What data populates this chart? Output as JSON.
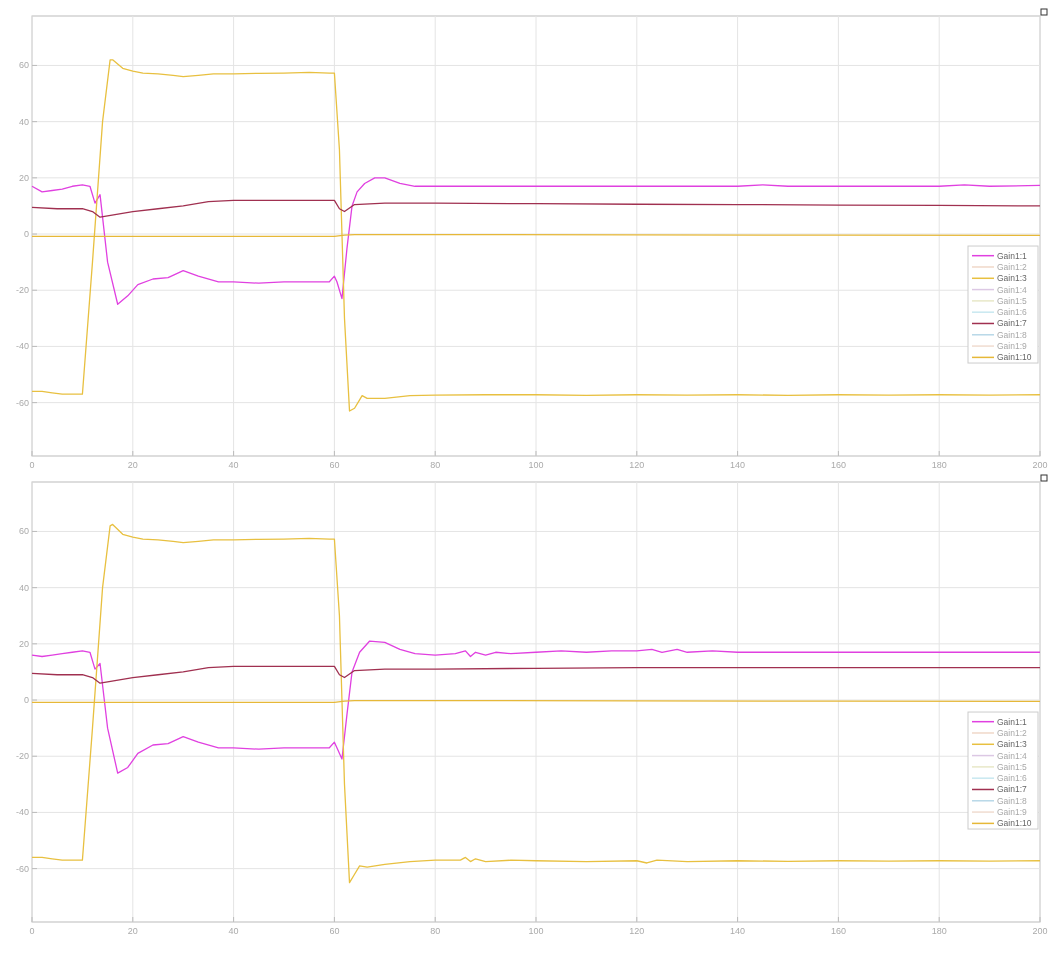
{
  "chart_data": [
    {
      "type": "line",
      "xlim": [
        0,
        200
      ],
      "ylim": [
        -79,
        77.6
      ],
      "xticks": [
        0,
        20,
        40,
        60,
        80,
        100,
        120,
        140,
        160,
        180,
        200
      ],
      "yticks": [
        -60,
        -40,
        -20,
        0,
        20,
        40,
        60
      ],
      "grid": true,
      "legend": "right",
      "series": [
        {
          "name": "Gain1:1",
          "color": "#e040e0",
          "x": [
            0,
            2,
            4,
            6,
            8,
            10,
            11.5,
            12.5,
            13.5,
            15,
            17,
            19,
            21,
            24,
            27,
            30,
            33,
            37,
            40,
            45,
            50,
            55,
            59,
            60,
            60.5,
            61.5,
            62.5,
            63.5,
            64.5,
            66,
            68,
            70,
            73,
            76,
            80,
            90,
            100,
            110,
            120,
            130,
            140,
            145,
            150,
            160,
            170,
            180,
            185,
            190,
            200
          ],
          "values": [
            17,
            15,
            15.5,
            16,
            17,
            17.5,
            17,
            11,
            14,
            -10,
            -25,
            -22,
            -18,
            -16,
            -15.5,
            -13,
            -15,
            -17,
            -17,
            -17.5,
            -17,
            -17,
            -17,
            -15,
            -17,
            -23,
            -5,
            10,
            15,
            18,
            20,
            20,
            18,
            17,
            17,
            17,
            17,
            17,
            17,
            17,
            17,
            17.5,
            17,
            17,
            17,
            17,
            17.5,
            17,
            17.3
          ]
        },
        {
          "name": "Gain1:2",
          "color": "#f0d8c8"
        },
        {
          "name": "Gain1:3",
          "color": "#e8c040",
          "x": [
            0,
            2,
            4,
            6,
            8,
            10,
            12,
            14,
            15.5,
            16,
            18,
            20,
            22,
            25,
            28,
            30,
            33,
            36,
            40,
            45,
            50,
            55,
            59,
            60,
            61,
            62,
            63,
            64,
            65,
            65.5,
            66.5,
            70,
            75,
            80,
            90,
            100,
            110,
            120,
            130,
            140,
            150,
            160,
            170,
            180,
            190,
            200
          ],
          "values": [
            -56,
            -56,
            -56.5,
            -57,
            -57,
            -57,
            -10,
            40,
            62,
            62,
            59,
            58,
            57.3,
            57,
            56.5,
            56,
            56.5,
            57,
            57,
            57.2,
            57.3,
            57.5,
            57.3,
            57.3,
            30,
            -30,
            -63,
            -62,
            -59,
            -57.5,
            -58.5,
            -58.5,
            -57.5,
            -57.3,
            -57.2,
            -57.2,
            -57.4,
            -57.2,
            -57.3,
            -57.2,
            -57.4,
            -57.2,
            -57.3,
            -57.2,
            -57.3,
            -57.2
          ]
        },
        {
          "name": "Gain1:4",
          "color": "#dcc8e4"
        },
        {
          "name": "Gain1:5",
          "color": "#e8e8c8"
        },
        {
          "name": "Gain1:6",
          "color": "#c8e8f0"
        },
        {
          "name": "Gain1:7",
          "color": "#a03050",
          "x": [
            0,
            5,
            10,
            12,
            13.5,
            15,
            20,
            25,
            30,
            35,
            40,
            50,
            60,
            61,
            62,
            64,
            70,
            80,
            100,
            120,
            140,
            160,
            180,
            200
          ],
          "values": [
            9.5,
            9,
            9,
            8,
            6,
            6.5,
            8,
            9,
            10,
            11.5,
            12,
            12,
            12,
            9,
            8,
            10.5,
            11,
            11,
            10.8,
            10.6,
            10.5,
            10.3,
            10.2,
            10
          ]
        },
        {
          "name": "Gain1:8",
          "color": "#b8d8e8"
        },
        {
          "name": "Gain1:9",
          "color": "#f0dcd0"
        },
        {
          "name": "Gain1:10",
          "color": "#e6b838",
          "x": [
            0,
            30,
            60,
            62,
            64,
            80,
            120,
            160,
            200
          ],
          "values": [
            -0.8,
            -0.8,
            -0.8,
            -0.4,
            -0.2,
            -0.2,
            -0.3,
            -0.4,
            -0.5
          ]
        }
      ]
    },
    {
      "type": "line",
      "xlim": [
        0,
        200
      ],
      "ylim": [
        -79,
        77.6
      ],
      "xticks": [
        0,
        20,
        40,
        60,
        80,
        100,
        120,
        140,
        160,
        180,
        200
      ],
      "yticks": [
        -60,
        -40,
        -20,
        0,
        20,
        40,
        60
      ],
      "grid": true,
      "legend": "right",
      "series": [
        {
          "name": "Gain1:1",
          "color": "#e040e0",
          "x": [
            0,
            2,
            4,
            6,
            8,
            10,
            11.5,
            12.5,
            13.5,
            15,
            17,
            19,
            21,
            24,
            27,
            30,
            33,
            37,
            40,
            45,
            50,
            55,
            59,
            60,
            60.5,
            61.5,
            62.5,
            63.5,
            65,
            67,
            70,
            73,
            76,
            80,
            84,
            86,
            87,
            88,
            90,
            92,
            95,
            100,
            105,
            110,
            115,
            120,
            123,
            125,
            128,
            130,
            135,
            140,
            150,
            160,
            170,
            180,
            190,
            200
          ],
          "values": [
            16,
            15.5,
            16,
            16.5,
            17,
            17.5,
            17,
            11,
            13,
            -10,
            -26,
            -24,
            -19,
            -16,
            -15.5,
            -13,
            -15,
            -17,
            -17,
            -17.5,
            -17,
            -17,
            -17,
            -15,
            -17,
            -21,
            -5,
            10,
            17,
            21,
            20.5,
            18,
            16.5,
            16,
            16.5,
            17.5,
            15.5,
            17,
            16,
            17,
            16.5,
            17,
            17.5,
            17,
            17.5,
            17.5,
            18,
            17,
            18,
            17,
            17.5,
            17,
            17,
            17,
            17,
            17,
            17,
            17
          ]
        },
        {
          "name": "Gain1:2",
          "color": "#f0d8c8"
        },
        {
          "name": "Gain1:3",
          "color": "#e8c040",
          "x": [
            0,
            2,
            4,
            6,
            8,
            10,
            12,
            14,
            15.5,
            16,
            18,
            20,
            22,
            25,
            28,
            30,
            33,
            36,
            40,
            45,
            50,
            55,
            59,
            60,
            61,
            62,
            63,
            64,
            65,
            66.5,
            70,
            75,
            80,
            85,
            86,
            87,
            88,
            90,
            95,
            100,
            110,
            120,
            122,
            124,
            130,
            140,
            150,
            160,
            170,
            180,
            190,
            200
          ],
          "values": [
            -56,
            -56,
            -56.5,
            -57,
            -57,
            -57,
            -10,
            40,
            62,
            62.5,
            59,
            58,
            57.3,
            57,
            56.5,
            56,
            56.5,
            57,
            57,
            57.2,
            57.3,
            57.5,
            57.3,
            57.3,
            30,
            -30,
            -65,
            -62,
            -59,
            -59.5,
            -58.5,
            -57.5,
            -57,
            -57,
            -56,
            -57.5,
            -56.5,
            -57.5,
            -57,
            -57.2,
            -57.5,
            -57.2,
            -58,
            -57,
            -57.5,
            -57.2,
            -57.4,
            -57.2,
            -57.3,
            -57.2,
            -57.3,
            -57.2
          ]
        },
        {
          "name": "Gain1:4",
          "color": "#dcc8e4"
        },
        {
          "name": "Gain1:5",
          "color": "#e8e8c8"
        },
        {
          "name": "Gain1:6",
          "color": "#c8e8f0"
        },
        {
          "name": "Gain1:7",
          "color": "#a03050",
          "x": [
            0,
            5,
            10,
            12,
            13.5,
            15,
            20,
            25,
            30,
            35,
            40,
            50,
            60,
            61,
            62,
            64,
            70,
            80,
            100,
            120,
            140,
            160,
            180,
            200
          ],
          "values": [
            9.5,
            9,
            9,
            8,
            6,
            6.5,
            8,
            9,
            10,
            11.5,
            12,
            12,
            12,
            9,
            8,
            10.5,
            11,
            11,
            11.3,
            11.5,
            11.5,
            11.5,
            11.5,
            11.5
          ]
        },
        {
          "name": "Gain1:8",
          "color": "#b8d8e8"
        },
        {
          "name": "Gain1:9",
          "color": "#f0dcd0"
        },
        {
          "name": "Gain1:10",
          "color": "#e6b838",
          "x": [
            0,
            30,
            60,
            62,
            64,
            80,
            120,
            160,
            200
          ],
          "values": [
            -0.8,
            -0.8,
            -0.8,
            -0.4,
            -0.2,
            -0.2,
            -0.3,
            -0.4,
            -0.5
          ]
        }
      ]
    }
  ]
}
